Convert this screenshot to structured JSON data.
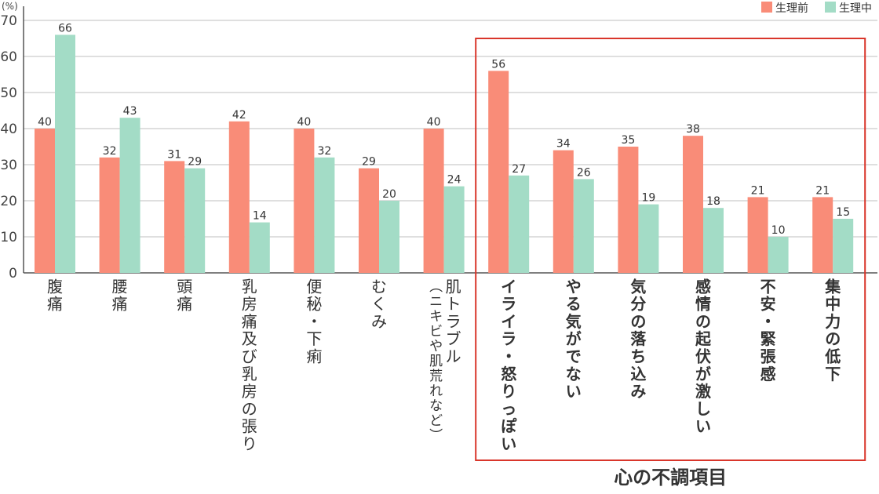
{
  "chart_data": {
    "type": "bar",
    "unit_label": "(%)",
    "ylim": [
      0,
      70
    ],
    "yticks": [
      0,
      10,
      20,
      30,
      40,
      50,
      60,
      70
    ],
    "grid": true,
    "legend_position": "top-right",
    "colors": {
      "before": "#f98c78",
      "during": "#a3dcc6",
      "highlight": "#d9362b",
      "grid": "#bfbfbf",
      "axis": "#555555"
    },
    "categories": [
      {
        "label": "腹痛"
      },
      {
        "label": "腰痛"
      },
      {
        "label": "頭痛"
      },
      {
        "label": "乳房痛及び乳房の張り"
      },
      {
        "label": "便秘・下痢"
      },
      {
        "label": "むくみ"
      },
      {
        "label": "肌トラブル",
        "sub": "(ニキビや肌荒れなど)"
      },
      {
        "label": "イライラ・怒りっぽい"
      },
      {
        "label": "やる気がでない"
      },
      {
        "label": "気分の落ち込み"
      },
      {
        "label": "感情の起伏が激しい"
      },
      {
        "label": "不安・緊張感"
      },
      {
        "label": "集中力の低下"
      }
    ],
    "series": [
      {
        "name": "生理前",
        "values": [
          40,
          32,
          31,
          42,
          40,
          29,
          40,
          56,
          34,
          35,
          38,
          21,
          21
        ]
      },
      {
        "name": "生理中",
        "values": [
          66,
          43,
          29,
          14,
          32,
          20,
          24,
          27,
          26,
          19,
          18,
          10,
          15
        ]
      }
    ],
    "highlight_group": {
      "label": "心の不調項目",
      "start": 7,
      "end": 12
    }
  }
}
